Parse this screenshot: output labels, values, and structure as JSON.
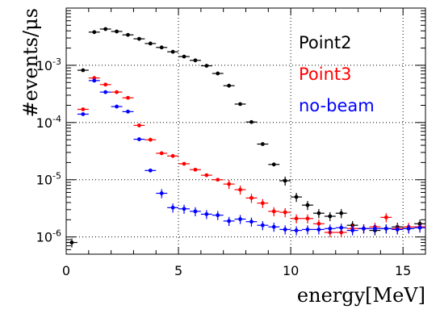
{
  "chart_data": {
    "type": "scatter",
    "xlabel": "energy[MeV]",
    "ylabel": "#events/μs",
    "xlim": [
      0,
      16
    ],
    "ylim": [
      5e-07,
      0.01
    ],
    "yscale": "log",
    "grid": true,
    "legend_position": "top-right",
    "x_ticks": [
      0,
      5,
      10,
      15
    ],
    "x_tick_labels": [
      "0",
      "5",
      "10",
      "15"
    ],
    "y_ticks": [
      1e-06,
      1e-05,
      0.0001,
      0.001
    ],
    "y_tick_labels": [
      {
        "base": "10",
        "exp": "-6"
      },
      {
        "base": "10",
        "exp": "-5"
      },
      {
        "base": "10",
        "exp": "-4"
      },
      {
        "base": "10",
        "exp": "-3"
      }
    ],
    "series": [
      {
        "name": "Point2",
        "color": "#000000",
        "x": [
          0.25,
          0.75,
          1.25,
          1.75,
          2.25,
          2.75,
          3.25,
          3.75,
          4.25,
          4.75,
          5.25,
          5.75,
          6.25,
          6.75,
          7.25,
          7.75,
          8.25,
          8.75,
          9.25,
          9.75,
          10.25,
          10.75,
          11.25,
          11.75,
          12.25,
          12.75,
          13.25,
          13.75,
          14.25,
          14.75,
          15.25,
          15.75
        ],
        "y": [
          8e-07,
          0.00082,
          0.0038,
          0.0043,
          0.0039,
          0.0034,
          0.0029,
          0.0024,
          0.00205,
          0.00172,
          0.00142,
          0.00122,
          0.00098,
          0.00072,
          0.00044,
          0.00021,
          0.000102,
          4.2e-05,
          1.85e-05,
          9.6e-06,
          5e-06,
          3.6e-06,
          2.6e-06,
          2.3e-06,
          2.6e-06,
          1.6e-06,
          1.4e-06,
          1.3e-06,
          1.4e-06,
          1.5e-06,
          1.4e-06,
          1.7e-06
        ]
      },
      {
        "name": "Point3",
        "color": "#ff0000",
        "x": [
          0.75,
          1.25,
          1.75,
          2.25,
          2.75,
          3.25,
          3.75,
          4.25,
          4.75,
          5.25,
          5.75,
          6.25,
          6.75,
          7.25,
          7.75,
          8.25,
          8.75,
          9.25,
          9.75,
          10.25,
          10.75,
          11.25,
          11.75,
          12.25,
          12.75,
          13.25,
          13.75,
          14.25,
          14.75,
          15.25,
          15.75
        ],
        "y": [
          0.00017,
          0.0006,
          0.00046,
          0.00034,
          0.00027,
          8.9e-05,
          5e-05,
          2.9e-05,
          2.6e-05,
          1.9e-05,
          1.5e-05,
          1.2e-05,
          1e-05,
          8.4e-06,
          6.7e-06,
          4.8e-06,
          3.9e-06,
          2.8e-06,
          2.7e-06,
          2.1e-06,
          2.1e-06,
          1.7e-06,
          1.2e-06,
          1.2e-06,
          1.4e-06,
          1.4e-06,
          1.5e-06,
          2.2e-06,
          1.4e-06,
          1.5e-06,
          1.5e-06
        ]
      },
      {
        "name": "no-beam",
        "color": "#0000ff",
        "x": [
          0.75,
          1.25,
          1.75,
          2.25,
          2.75,
          3.25,
          3.75,
          4.25,
          4.75,
          5.25,
          5.75,
          6.25,
          6.75,
          7.25,
          7.75,
          8.25,
          8.75,
          9.25,
          9.75,
          10.25,
          10.75,
          11.25,
          11.75,
          12.25,
          12.75,
          13.25,
          13.75,
          14.25,
          14.75,
          15.25,
          15.75
        ],
        "y": [
          0.00014,
          0.00054,
          0.00034,
          0.00019,
          0.000155,
          5.1e-05,
          1.45e-05,
          5.8e-06,
          3.25e-06,
          3.1e-06,
          2.8e-06,
          2.5e-06,
          2.4e-06,
          1.9e-06,
          2.05e-06,
          1.85e-06,
          1.6e-06,
          1.5e-06,
          1.35e-06,
          1.3e-06,
          1.35e-06,
          1.35e-06,
          1.4e-06,
          1.45e-06,
          1.3e-06,
          1.4e-06,
          1.4e-06,
          1.4e-06,
          1.35e-06,
          1.4e-06,
          1.45e-06
        ]
      }
    ]
  }
}
